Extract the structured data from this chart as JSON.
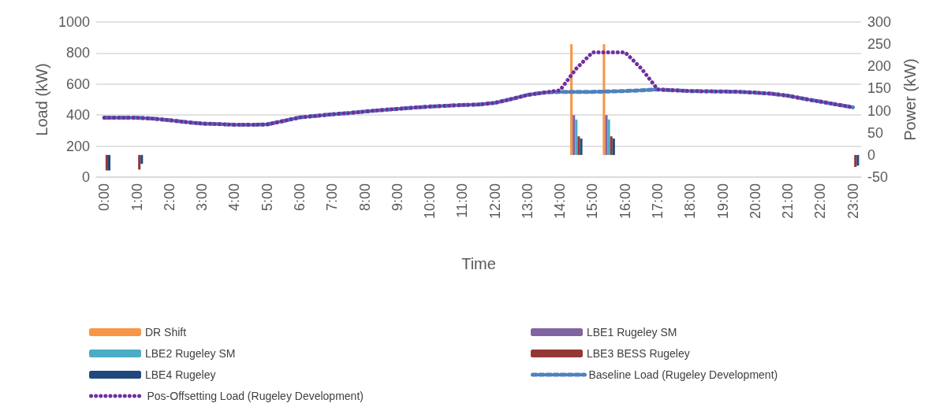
{
  "chart_data": {
    "type": "bar",
    "xlabel": "Time",
    "ylabel": "Load (kW)",
    "y2label": "Power (kW)",
    "categories": [
      "0:00",
      null,
      "1:00",
      null,
      "2:00",
      null,
      "3:00",
      null,
      "4:00",
      null,
      "5:00",
      null,
      "6:00",
      null,
      "7:00",
      null,
      "8:00",
      null,
      "9:00",
      null,
      "10:00",
      null,
      "11:00",
      null,
      "12:00",
      null,
      "13:00",
      null,
      "14:00",
      null,
      "15:00",
      null,
      "16:00",
      null,
      "17:00",
      null,
      "18:00",
      null,
      "19:00",
      null,
      "20:00",
      null,
      "21:00",
      null,
      "22:00",
      null,
      "23:00"
    ],
    "series": [
      {
        "name": "DR Shift",
        "axis": "y2",
        "color": "#f79646",
        "values": [
          null,
          null,
          null,
          null,
          null,
          null,
          null,
          null,
          null,
          null,
          null,
          null,
          null,
          null,
          null,
          null,
          null,
          null,
          null,
          null,
          null,
          null,
          null,
          null,
          null,
          null,
          null,
          null,
          null,
          250,
          null,
          250,
          null,
          null,
          null,
          null,
          null,
          null,
          null,
          null,
          null,
          null,
          null,
          null,
          null,
          null,
          null
        ]
      },
      {
        "name": "LBE1 Rugeley SM",
        "axis": "y2",
        "color": "#8064a2",
        "values": [
          null,
          null,
          null,
          null,
          null,
          null,
          null,
          null,
          null,
          null,
          null,
          null,
          null,
          null,
          null,
          null,
          null,
          null,
          null,
          null,
          null,
          null,
          null,
          null,
          null,
          null,
          null,
          null,
          null,
          90,
          null,
          90,
          null,
          null,
          null,
          null,
          null,
          null,
          null,
          null,
          null,
          null,
          null,
          null,
          null,
          null,
          null
        ]
      },
      {
        "name": "LBE2 Rugeley SM",
        "axis": "y2",
        "color": "#4bacc6",
        "values": [
          null,
          null,
          null,
          null,
          null,
          null,
          null,
          null,
          null,
          null,
          null,
          null,
          null,
          null,
          null,
          null,
          null,
          null,
          null,
          null,
          null,
          null,
          null,
          null,
          null,
          null,
          null,
          null,
          null,
          80,
          null,
          80,
          null,
          null,
          null,
          null,
          null,
          null,
          null,
          null,
          null,
          null,
          null,
          null,
          null,
          null,
          null
        ]
      },
      {
        "name": "LBE3 BESS Rugeley",
        "axis": "y2",
        "color": "#953735",
        "values": [
          -35,
          null,
          -33,
          null,
          null,
          null,
          null,
          null,
          null,
          null,
          null,
          null,
          null,
          null,
          null,
          null,
          null,
          null,
          null,
          null,
          null,
          null,
          null,
          null,
          null,
          null,
          null,
          null,
          null,
          42,
          null,
          42,
          null,
          null,
          null,
          null,
          null,
          null,
          null,
          null,
          null,
          null,
          null,
          null,
          null,
          null,
          -27
        ]
      },
      {
        "name": "LBE4 Rugeley",
        "axis": "y2",
        "color": "#1f497d",
        "values": [
          -35,
          null,
          -20,
          null,
          null,
          null,
          null,
          null,
          null,
          null,
          null,
          null,
          null,
          null,
          null,
          null,
          null,
          null,
          null,
          null,
          null,
          null,
          null,
          null,
          null,
          null,
          null,
          null,
          null,
          37,
          null,
          37,
          null,
          null,
          null,
          null,
          null,
          null,
          null,
          null,
          null,
          null,
          null,
          null,
          null,
          null,
          -24
        ]
      },
      {
        "name": "Baseline Load (Rugeley Development)",
        "type": "line",
        "line_style": "dashed",
        "color": "#4f81bd",
        "values": [
          383,
          383,
          383,
          377,
          367,
          355,
          345,
          342,
          338,
          337,
          340,
          362,
          385,
          395,
          405,
          413,
          423,
          432,
          440,
          448,
          455,
          460,
          465,
          468,
          479,
          503,
          530,
          545,
          550,
          550,
          550,
          552,
          555,
          560,
          565,
          560,
          555,
          553,
          552,
          550,
          545,
          538,
          525,
          505,
          487,
          468,
          450
        ]
      },
      {
        "name": "Pos-Offsetting Load (Rugeley Development)",
        "type": "line",
        "line_style": "dotted",
        "color": "#7030a0",
        "values": [
          383,
          383,
          383,
          377,
          367,
          355,
          345,
          342,
          338,
          337,
          340,
          362,
          385,
          395,
          405,
          413,
          423,
          432,
          440,
          448,
          455,
          460,
          465,
          468,
          479,
          503,
          530,
          545,
          560,
          700,
          805,
          805,
          805,
          700,
          565,
          560,
          555,
          553,
          552,
          550,
          545,
          538,
          525,
          505,
          487,
          468,
          450
        ]
      }
    ],
    "ylim": [
      0,
      1000
    ],
    "yticks": [
      0,
      200,
      400,
      600,
      800,
      1000
    ],
    "y2lim": [
      -50,
      300
    ],
    "y2ticks": [
      -50,
      0,
      50,
      100,
      150,
      200,
      250,
      300
    ],
    "grid": "y",
    "legend": "bottom",
    "marker": "none"
  }
}
